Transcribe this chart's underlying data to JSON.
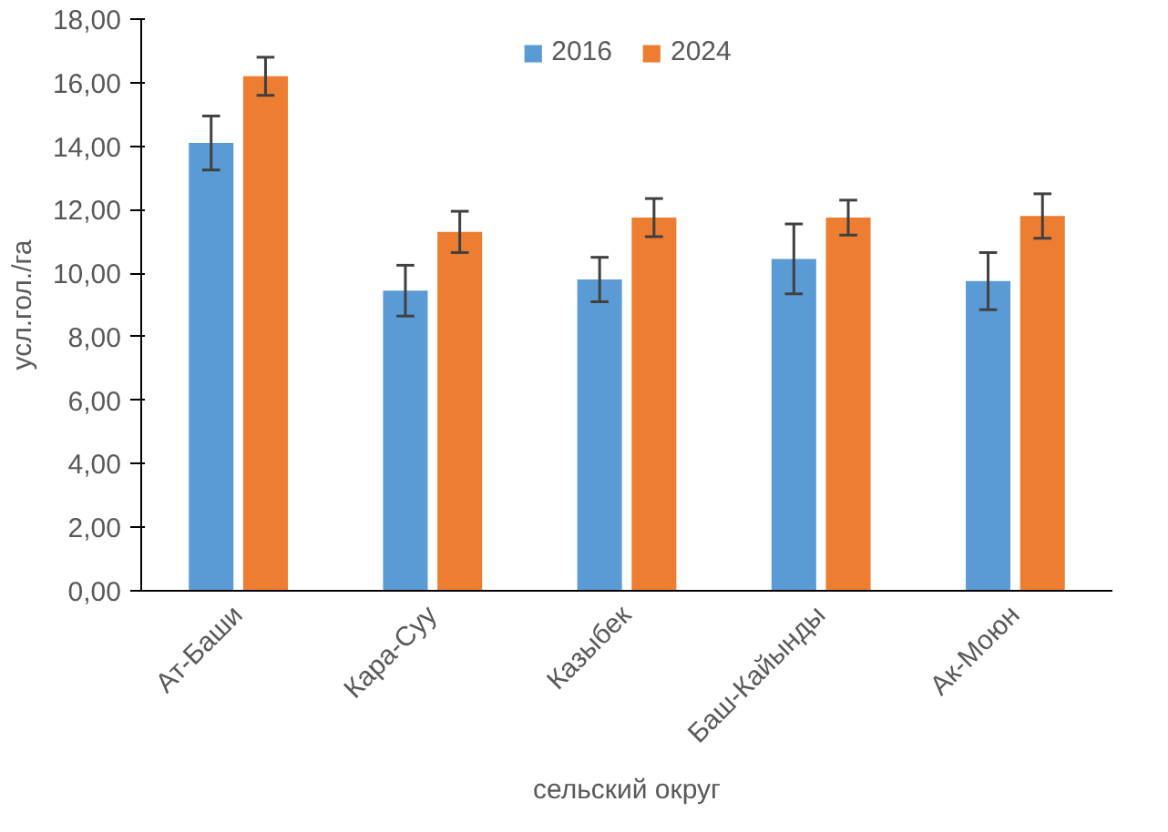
{
  "chart_data": {
    "type": "bar",
    "xlabel": "сельский округ",
    "ylabel": "усл.гол./га",
    "categories": [
      "Ат-Баши",
      "Кара-Суу",
      "Казыбек",
      "Баш-Кайынды",
      "Ак-Моюн"
    ],
    "series": [
      {
        "name": "2016",
        "color": "#5b9bd5",
        "values": [
          14.1,
          9.45,
          9.8,
          10.45,
          9.75
        ],
        "errors": [
          0.85,
          0.8,
          0.7,
          1.1,
          0.9
        ]
      },
      {
        "name": "2024",
        "color": "#ed7d31",
        "values": [
          16.2,
          11.3,
          11.75,
          11.75,
          11.8
        ],
        "errors": [
          0.6,
          0.65,
          0.6,
          0.55,
          0.7
        ]
      }
    ],
    "ylim": [
      0,
      18
    ],
    "yticks": [
      {
        "value": 0,
        "label": "0,00"
      },
      {
        "value": 2,
        "label": "2,00"
      },
      {
        "value": 4,
        "label": "4,00"
      },
      {
        "value": 6,
        "label": "6,00"
      },
      {
        "value": 8,
        "label": "8,00"
      },
      {
        "value": 10,
        "label": "10,00"
      },
      {
        "value": 12,
        "label": "12,00"
      },
      {
        "value": 14,
        "label": "14,00"
      },
      {
        "value": 16,
        "label": "16,00"
      },
      {
        "value": 18,
        "label": "18,00"
      }
    ],
    "grid": false,
    "legend": "top"
  }
}
